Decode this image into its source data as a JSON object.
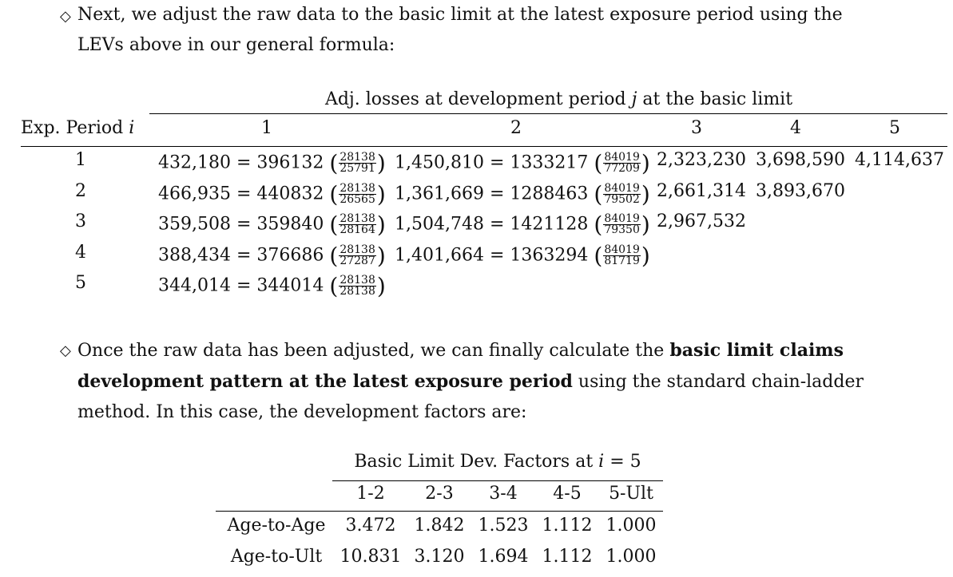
{
  "paragraph1": {
    "bullet": "◇",
    "line1": "Next, we adjust the raw data to the basic limit at the latest exposure period using the",
    "line2": "LEVs above in our general formula:"
  },
  "table1": {
    "group_header": "Adj. losses at development period j at the basic limit",
    "row_header": "Exp. Period i",
    "columns": [
      "1",
      "2",
      "3",
      "4",
      "5"
    ],
    "rows": [
      {
        "period": "1",
        "c1": {
          "value": "432,180",
          "base": "396132",
          "num": "28138",
          "den": "25791"
        },
        "c2": {
          "value": "1,450,810",
          "base": "1333217",
          "num": "84019",
          "den": "77209"
        },
        "c3": "2,323,230",
        "c4": "3,698,590",
        "c5": "4,114,637"
      },
      {
        "period": "2",
        "c1": {
          "value": "466,935",
          "base": "440832",
          "num": "28138",
          "den": "26565"
        },
        "c2": {
          "value": "1,361,669",
          "base": "1288463",
          "num": "84019",
          "den": "79502"
        },
        "c3": "2,661,314",
        "c4": "3,893,670",
        "c5": ""
      },
      {
        "period": "3",
        "c1": {
          "value": "359,508",
          "base": "359840",
          "num": "28138",
          "den": "28164"
        },
        "c2": {
          "value": "1,504,748",
          "base": "1421128",
          "num": "84019",
          "den": "79350"
        },
        "c3": "2,967,532",
        "c4": "",
        "c5": ""
      },
      {
        "period": "4",
        "c1": {
          "value": "388,434",
          "base": "376686",
          "num": "28138",
          "den": "27287"
        },
        "c2": {
          "value": "1,401,664",
          "base": "1363294",
          "num": "84019",
          "den": "81719"
        },
        "c3": "",
        "c4": "",
        "c5": ""
      },
      {
        "period": "5",
        "c1": {
          "value": "344,014",
          "base": "344014",
          "num": "28138",
          "den": "28138"
        },
        "c2": null,
        "c3": "",
        "c4": "",
        "c5": ""
      }
    ]
  },
  "paragraph2": {
    "bullet": "◇",
    "line1_pre": "Once the raw data has been adjusted, we can finally calculate the ",
    "line1_bold": "basic limit claims",
    "line2_bold": "development pattern at the latest exposure period",
    "line2_post": " using the standard chain-ladder",
    "line3": "method. In this case, the development factors are:"
  },
  "table2": {
    "title": "Basic Limit Dev. Factors at i = 5",
    "columns": [
      "1-2",
      "2-3",
      "3-4",
      "4-5",
      "5-Ult"
    ],
    "rows": [
      {
        "label": "Age-to-Age",
        "values": [
          "3.472",
          "1.842",
          "1.523",
          "1.112",
          "1.000"
        ]
      },
      {
        "label": "Age-to-Ult",
        "values": [
          "10.831",
          "3.120",
          "1.694",
          "1.112",
          "1.000"
        ]
      }
    ]
  }
}
